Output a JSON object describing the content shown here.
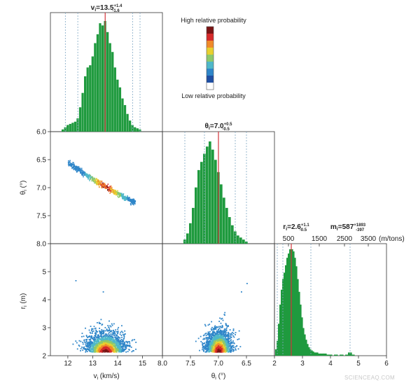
{
  "chart_data": {
    "type": "corner_plot",
    "colors": {
      "histogram": "#1f9a3e",
      "median_line": "#d1343a",
      "ci_line": "#7fa7c4",
      "frame": "#333333"
    },
    "colorbar": {
      "top_label": "High relative probability",
      "bottom_label": "Low relative probability",
      "stops": [
        "#ffffff",
        "#1f4fa3",
        "#2f86c9",
        "#4fb8c9",
        "#8ec96b",
        "#e8d02f",
        "#f08a2a",
        "#d62a2a",
        "#7a1414"
      ]
    },
    "parameters": [
      {
        "key": "v",
        "title_base": "v",
        "title_sub": "i",
        "title_value": "=13.5",
        "title_sup": "+1.4",
        "title_low": "-1.6",
        "axis_label": "v (km/s)",
        "axis_sub": "i",
        "range": [
          11.3,
          15.8
        ],
        "ticks": [
          12,
          13,
          14,
          15
        ],
        "tick_labels": [
          "12",
          "13",
          "14",
          "15"
        ],
        "median": 13.5,
        "ci_inner": [
          12.4,
          14.6
        ],
        "ci_outer": [
          11.9,
          14.9
        ],
        "hist_bins": [
          11.8,
          11.9,
          12.0,
          12.1,
          12.2,
          12.3,
          12.4,
          12.5,
          12.6,
          12.7,
          12.8,
          12.9,
          13.0,
          13.1,
          13.2,
          13.3,
          13.4,
          13.5,
          13.6,
          13.7,
          13.8,
          13.9,
          14.0,
          14.1,
          14.2,
          14.3,
          14.4,
          14.5,
          14.6,
          14.7,
          14.8,
          14.9
        ],
        "hist_values": [
          2,
          4,
          6,
          7,
          8,
          9,
          12,
          22,
          35,
          50,
          58,
          60,
          68,
          80,
          88,
          98,
          96,
          100,
          90,
          80,
          72,
          58,
          47,
          40,
          30,
          24,
          16,
          10,
          6,
          4,
          3,
          2
        ]
      },
      {
        "key": "theta",
        "title_base": "θ",
        "title_sub": "i",
        "title_value": "=7.0",
        "title_sup": "+0.5",
        "title_low": "-0.5",
        "axis_label": "θ (°)",
        "axis_sub": "i",
        "range": [
          6.0,
          8.0
        ],
        "ticks": [
          6.0,
          6.5,
          7.0,
          7.5,
          8.0
        ],
        "tick_labels": [
          "6.0",
          "6.5",
          "7.0",
          "7.5",
          "8.0"
        ],
        "x_ticks": [
          8.0,
          7.5,
          7.0,
          6.5
        ],
        "x_tick_labels": [
          "8.0",
          "7.5",
          "7.0",
          "6.5"
        ],
        "median": 7.0,
        "ci_inner": [
          6.7,
          7.25
        ],
        "ci_outer": [
          6.5,
          7.6
        ],
        "hist_bins": [
          7.6,
          7.55,
          7.5,
          7.45,
          7.4,
          7.35,
          7.3,
          7.25,
          7.2,
          7.15,
          7.1,
          7.05,
          7.0,
          6.95,
          6.9,
          6.85,
          6.8,
          6.75,
          6.7,
          6.65,
          6.6,
          6.55,
          6.5
        ],
        "hist_values": [
          4,
          10,
          20,
          35,
          55,
          72,
          80,
          88,
          95,
          100,
          92,
          82,
          70,
          58,
          45,
          35,
          26,
          18,
          12,
          8,
          6,
          4,
          2
        ]
      },
      {
        "key": "r",
        "title_base": "r",
        "title_sub": "i",
        "title_value": "=2.6",
        "title_sup": "+1.1",
        "title_low": "-0.5",
        "axis_label": "r (m)",
        "axis_sub": "i",
        "range": [
          2.0,
          6.0
        ],
        "ticks": [
          2,
          3,
          4,
          5
        ],
        "tick_labels": [
          "2",
          "3",
          "4",
          "5"
        ],
        "x_ticks": [
          2,
          3,
          4,
          5,
          6
        ],
        "x_tick_labels": [
          "2",
          "3",
          "4",
          "5",
          "6"
        ],
        "median": 2.6,
        "ci_inner": [
          2.3,
          3.3
        ],
        "ci_outer": [
          2.1,
          4.7
        ],
        "hist_bins": [
          2.1,
          2.15,
          2.2,
          2.25,
          2.3,
          2.35,
          2.4,
          2.45,
          2.5,
          2.55,
          2.6,
          2.65,
          2.7,
          2.75,
          2.8,
          2.85,
          2.9,
          2.95,
          3.0,
          3.05,
          3.1,
          3.15,
          3.2,
          3.25,
          3.3,
          3.35,
          3.4,
          3.5,
          3.6,
          3.7,
          3.8,
          3.9,
          4.0,
          4.2,
          4.4,
          4.6,
          4.7,
          4.8
        ],
        "hist_values": [
          6,
          14,
          30,
          48,
          62,
          72,
          78,
          85,
          92,
          96,
          100,
          98,
          92,
          84,
          72,
          60,
          48,
          36,
          26,
          20,
          15,
          11,
          8,
          6,
          5,
          4,
          3,
          3,
          2,
          2,
          2,
          1,
          1,
          1,
          1,
          1,
          3,
          1
        ]
      }
    ],
    "mass": {
      "title_base": "m",
      "title_sub": "i",
      "title_value": "=587",
      "title_sup": "+1893",
      "title_low": "-397",
      "ticks": [
        500,
        1500,
        2500,
        3500
      ],
      "tick_labels": [
        "500",
        "1500",
        "2500",
        "3500"
      ],
      "unit": "(m/tons)"
    },
    "scatter_v_theta": {
      "x_range": [
        12.0,
        14.7
      ],
      "y_at_x": [
        [
          12.0,
          6.55
        ],
        [
          13.0,
          6.85
        ],
        [
          14.0,
          7.1
        ],
        [
          14.7,
          7.26
        ]
      ]
    },
    "density_v_r": {
      "peak": [
        13.5,
        2.5
      ],
      "x_spread": 0.75,
      "y_spread": 0.35,
      "outliers": [
        [
          12.3,
          4.7
        ],
        [
          13.4,
          4.3
        ]
      ]
    },
    "density_theta_r": {
      "peak": [
        7.0,
        2.5
      ],
      "x_spread": 0.22,
      "y_spread": 0.4,
      "outliers": [
        [
          6.5,
          4.6
        ],
        [
          6.6,
          4.3
        ]
      ]
    }
  },
  "watermark": "SCIENCEAQ.COM"
}
